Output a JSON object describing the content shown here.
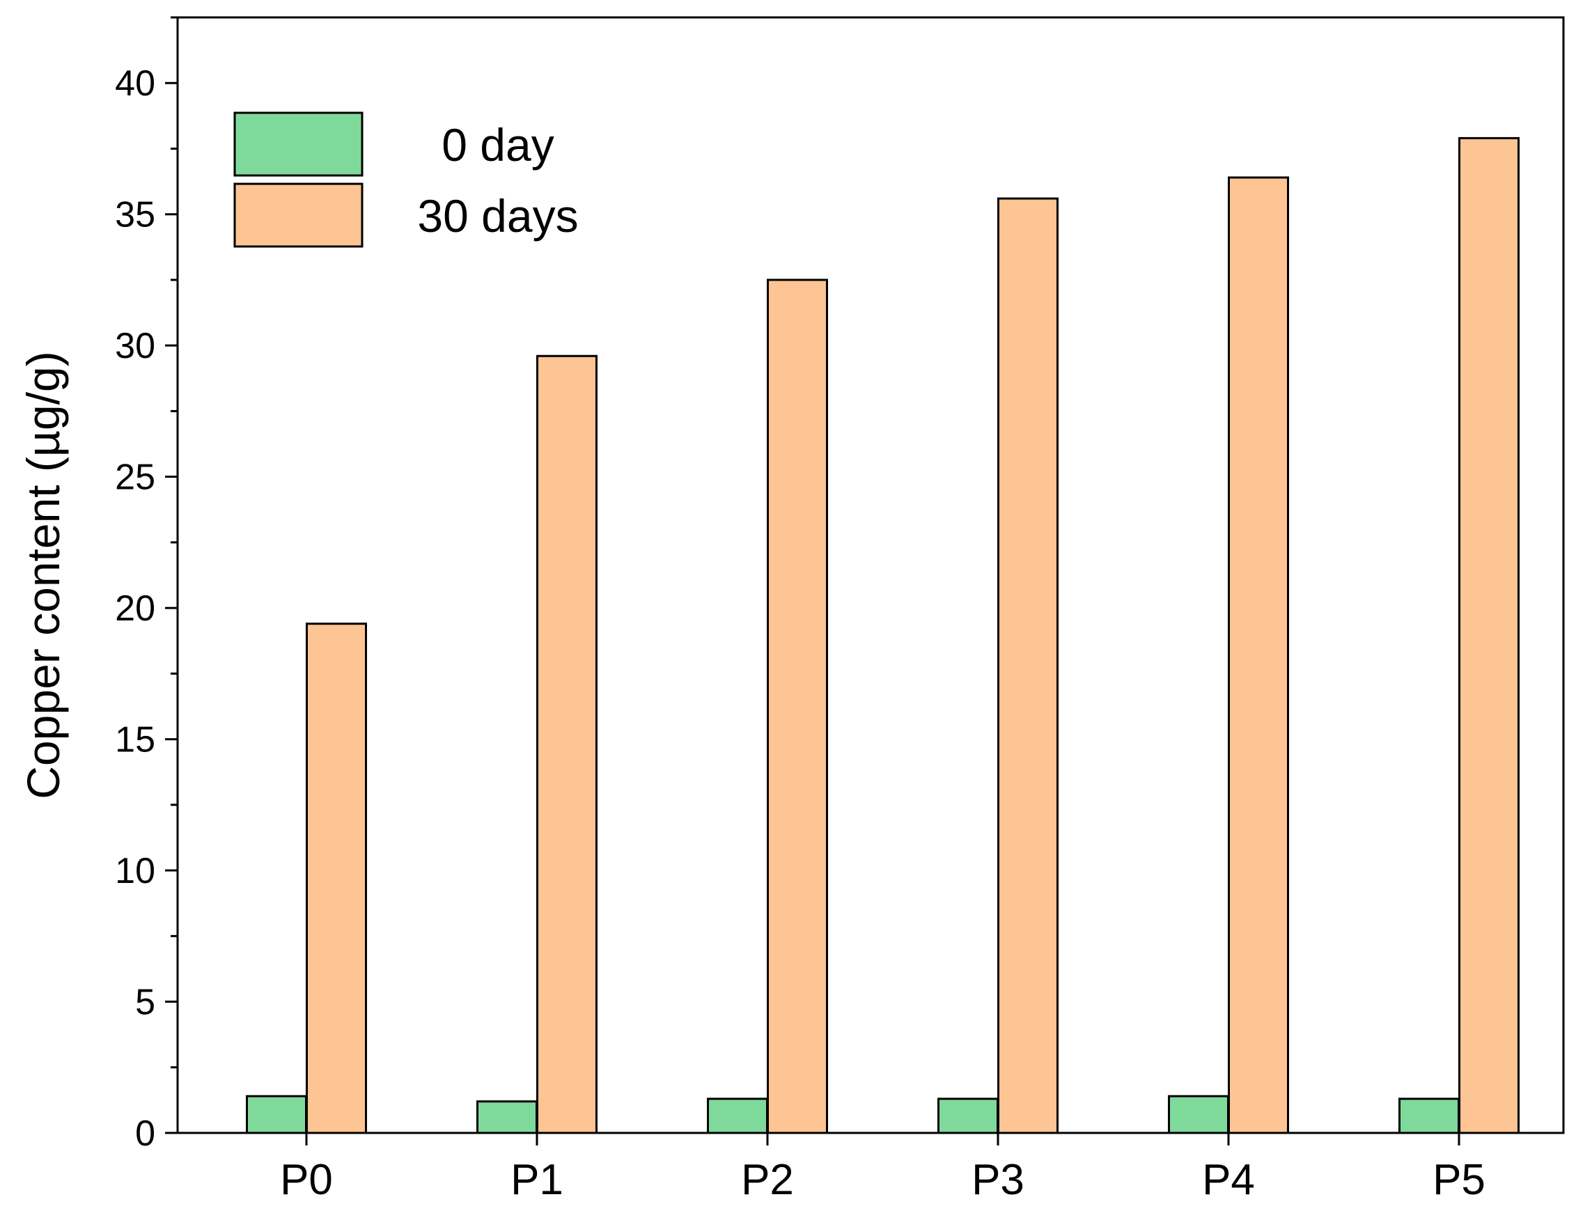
{
  "chart_data": {
    "type": "bar",
    "title": "",
    "xlabel": "",
    "ylabel": "Copper content (µg/g)",
    "categories": [
      "P0",
      "P1",
      "P2",
      "P3",
      "P4",
      "P5"
    ],
    "ylim": [
      0,
      42.5
    ],
    "yticks": [
      0,
      5,
      10,
      15,
      20,
      25,
      30,
      35,
      40
    ],
    "ytick_labels": [
      "0",
      "5",
      "10",
      "15",
      "20",
      "25",
      "30",
      "35",
      "40"
    ],
    "minor_ytick_step": 2.5,
    "grid": false,
    "legend_position": "top-left",
    "series": [
      {
        "name": "0 day",
        "color": "#7fd99b",
        "values": [
          1.4,
          1.2,
          1.3,
          1.3,
          1.4,
          1.3
        ]
      },
      {
        "name": "30 days",
        "color": "#fdc494",
        "values": [
          19.4,
          29.6,
          32.5,
          35.6,
          36.4,
          37.9
        ]
      }
    ]
  }
}
